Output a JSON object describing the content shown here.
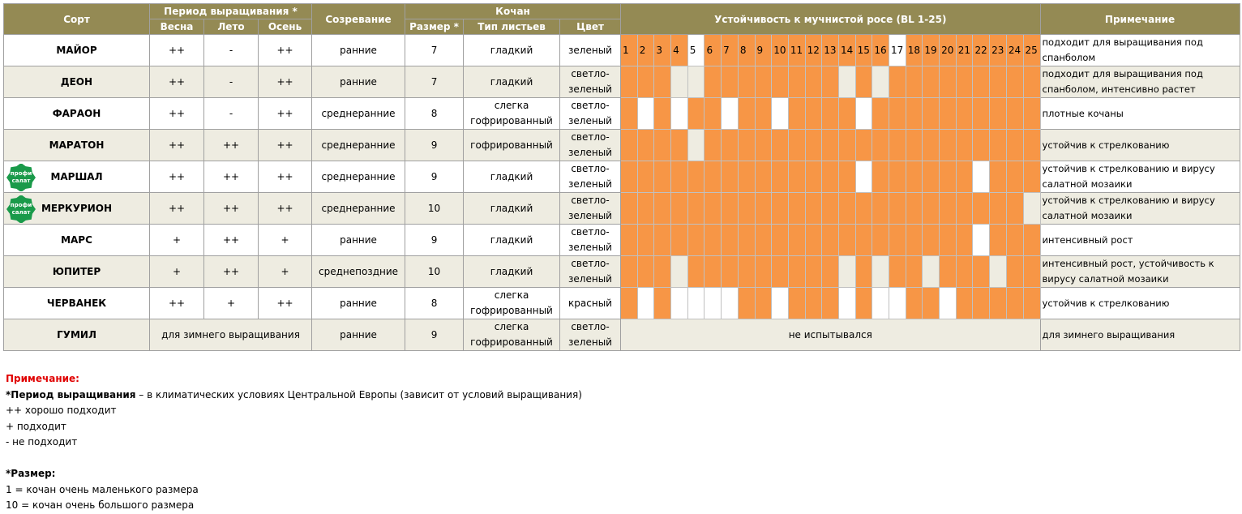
{
  "header": {
    "variety": "Сорт",
    "period": "Период выращивания *",
    "seasons": [
      "Весна",
      "Лето",
      "Осень"
    ],
    "maturity": "Созревание",
    "head": "Кочан",
    "size": "Размер *",
    "leaf": "Тип листьев",
    "color": "Цвет",
    "resistance": "Устойчивость к мучнистой росе (BL 1-25)",
    "note": "Примечание"
  },
  "bl_numbers": [
    1,
    2,
    3,
    4,
    5,
    6,
    7,
    8,
    9,
    10,
    11,
    12,
    13,
    14,
    15,
    16,
    17,
    18,
    19,
    20,
    21,
    22,
    23,
    24,
    25
  ],
  "rows": [
    {
      "name": "МАЙОР",
      "seasons": [
        "++",
        "-",
        "++"
      ],
      "maturity": "ранние",
      "size": 7,
      "leaf": "гладкий",
      "color": "зеленый",
      "susceptible": [
        5,
        17
      ],
      "note": "подходит для выращивания под спанболом"
    },
    {
      "name": "ДЕОН",
      "seasons": [
        "++",
        "-",
        "++"
      ],
      "maturity": "ранние",
      "size": 7,
      "leaf": "гладкий",
      "color": "светло-зеленый",
      "susceptible": [
        4,
        5,
        14,
        16
      ],
      "note": "подходит для выращивания под спанболом, интенсивно растет"
    },
    {
      "name": "ФАРАОН",
      "seasons": [
        "++",
        "-",
        "++"
      ],
      "maturity": "среднеранние",
      "size": 8,
      "leaf": "слегка гофрированный",
      "color": "светло-зеленый",
      "susceptible": [
        2,
        4,
        7,
        10,
        15
      ],
      "note": "плотные кочаны"
    },
    {
      "name": "МАРАТОН",
      "seasons": [
        "++",
        "++",
        "++"
      ],
      "maturity": "среднеранние",
      "size": 9,
      "leaf": "гофрированный",
      "color": "светло-зеленый",
      "susceptible": [
        5
      ],
      "note": "устойчив к стрелкованию"
    },
    {
      "name": "МАРШАЛ",
      "badge": [
        "профи",
        "салат"
      ],
      "seasons": [
        "++",
        "++",
        "++"
      ],
      "maturity": "среднеранние",
      "size": 9,
      "leaf": "гладкий",
      "color": "светло-зеленый",
      "susceptible": [
        15,
        22
      ],
      "note": "устойчив к стрелкованию и вирусу салатной мозаики"
    },
    {
      "name": "МЕРКУРИОН",
      "badge": [
        "профи",
        "салат"
      ],
      "seasons": [
        "++",
        "++",
        "++"
      ],
      "maturity": "среднеранние",
      "size": 10,
      "leaf": "гладкий",
      "color": "светло-зеленый",
      "susceptible": [
        25
      ],
      "note": "устойчив к стрелкованию и вирусу салатной мозаики"
    },
    {
      "name": "МАРС",
      "seasons": [
        "+",
        "++",
        "+"
      ],
      "maturity": "ранние",
      "size": 9,
      "leaf": "гладкий",
      "color": "светло-зеленый",
      "susceptible": [
        22
      ],
      "note": "интенсивный рост"
    },
    {
      "name": "ЮПИТЕР",
      "seasons": [
        "+",
        "++",
        "+"
      ],
      "maturity": "среднепоздние",
      "size": 10,
      "leaf": "гладкий",
      "color": "светло-зеленый",
      "susceptible": [
        4,
        14,
        16,
        19,
        23
      ],
      "note": "интенсивный рост,  устойчивость к вирусу салатной мозаики"
    },
    {
      "name": "ЧЕРВАНЕК",
      "seasons": [
        "++",
        "+",
        "++"
      ],
      "maturity": "ранние",
      "size": 8,
      "leaf": "слегка гофрированный",
      "color": "красный",
      "susceptible": [
        2,
        4,
        5,
        6,
        7,
        10,
        14,
        16,
        17,
        20
      ],
      "note": "устойчив к стрелкованию"
    },
    {
      "name": "ГУМИЛ",
      "winter": "для зимнего выращивания",
      "maturity": "ранние",
      "size": 9,
      "leaf": "слегка гофрированный",
      "color": "светло-зеленый",
      "untested": "не испытывался",
      "note": "для зимнего выращивания"
    }
  ],
  "notes": {
    "title": "Примечание:",
    "period_bold": "*Период выращивания",
    "period_text": " – в климатических условиях Центральной Европы (зависит от условий выращивания)",
    "lines": [
      "++ хорошо подходит",
      "+ подходит",
      "- не подходит"
    ],
    "size_title": "*Размер:",
    "size_lines": [
      "1 = кочан очень маленького размера",
      "10 = кочан очень большого размера"
    ]
  }
}
